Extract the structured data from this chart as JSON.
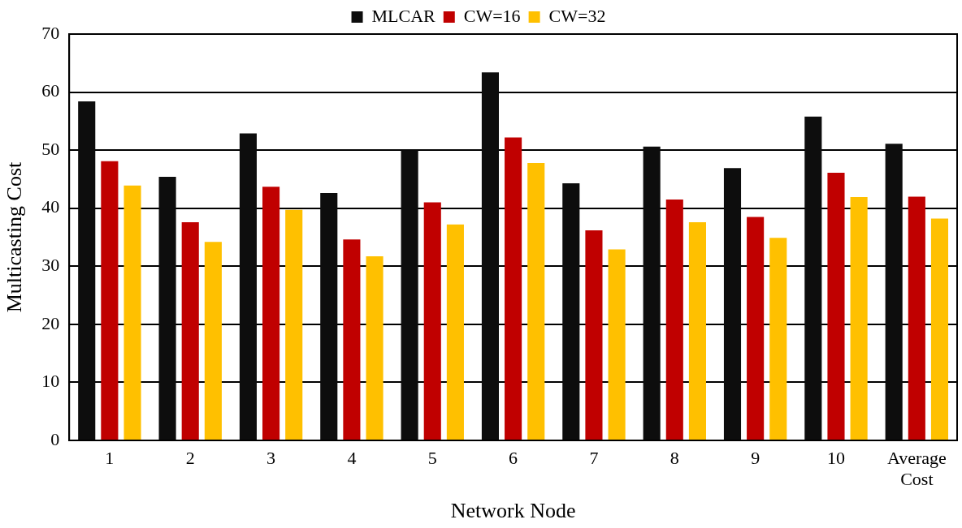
{
  "chart_data": {
    "type": "bar",
    "xlabel": "Network Node",
    "ylabel": "Multicasting Cost",
    "categories": [
      "1",
      "2",
      "3",
      "4",
      "5",
      "6",
      "7",
      "8",
      "9",
      "10",
      "Average Cost"
    ],
    "series": [
      {
        "name": "MLCAR",
        "color": "#0d0d0d",
        "values": [
          58.4,
          45.4,
          52.9,
          42.6,
          50.0,
          63.4,
          44.3,
          50.6,
          46.9,
          55.8,
          51.1
        ]
      },
      {
        "name": "CW=16",
        "color": "#c00000",
        "values": [
          48.1,
          37.6,
          43.7,
          34.6,
          41.0,
          52.2,
          36.2,
          41.5,
          38.5,
          46.1,
          42.0
        ]
      },
      {
        "name": "CW=32",
        "color": "#ffc000",
        "values": [
          43.9,
          34.2,
          39.7,
          31.7,
          37.2,
          47.8,
          32.9,
          37.6,
          34.9,
          41.9,
          38.2
        ]
      }
    ],
    "ylim": [
      0,
      70
    ],
    "yticks": [
      0,
      10,
      20,
      30,
      40,
      50,
      60,
      70
    ],
    "grid": "y",
    "legend": "top"
  }
}
